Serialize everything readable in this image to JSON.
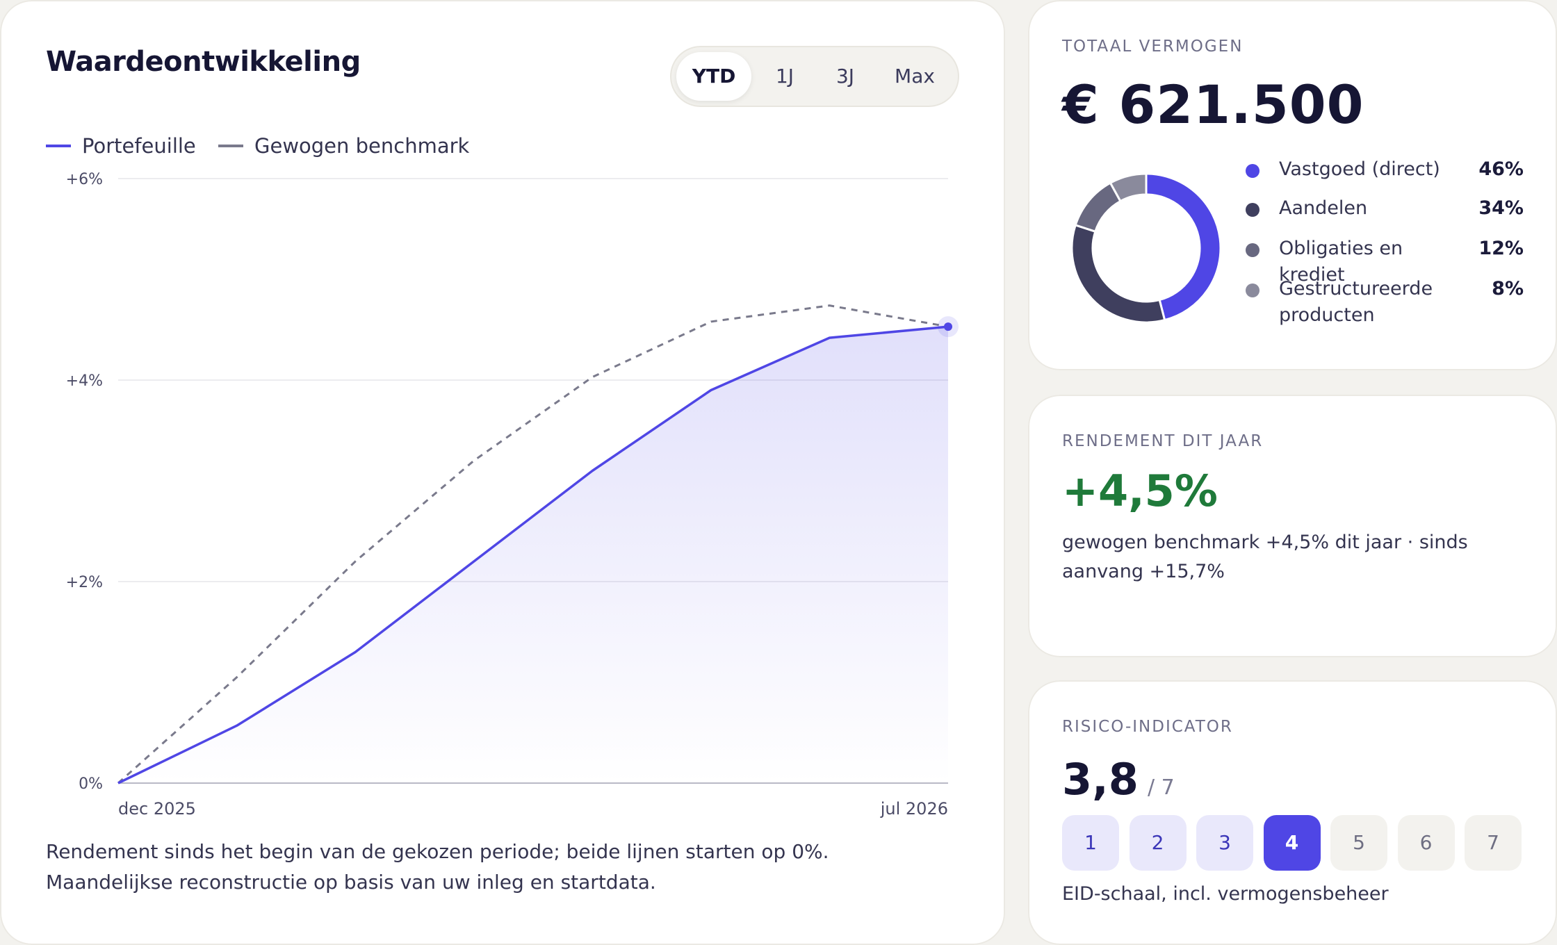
{
  "chart_card": {
    "title": "Waardeontwikkeling",
    "period_tabs": [
      {
        "label": "YTD",
        "active": true
      },
      {
        "label": "1J",
        "active": false
      },
      {
        "label": "3J",
        "active": false
      },
      {
        "label": "Max",
        "active": false
      }
    ],
    "legend": [
      {
        "label": "Portefeuille",
        "color": "#4f46e5",
        "style": "solid"
      },
      {
        "label": "Gewogen benchmark",
        "color": "#7a7a8c",
        "style": "dashed"
      }
    ],
    "footnote": "Rendement sinds het begin van de gekozen periode; beide lijnen starten op 0%. Maandelijkse reconstructie op basis van uw inleg en startdata."
  },
  "chart_data": {
    "type": "area",
    "y_ticks": [
      "0%",
      "+2%",
      "+4%",
      "+6%"
    ],
    "x_ticks": [
      "dec 2025",
      "jul 2026"
    ],
    "ylim": [
      0,
      6
    ],
    "grid": true,
    "series": [
      {
        "name": "Portefeuille",
        "color": "#4f46e5",
        "values": [
          0,
          0.57,
          1.3,
          2.2,
          3.1,
          3.9,
          4.42,
          4.53
        ]
      },
      {
        "name": "Gewogen benchmark",
        "color": "#7a7a8c",
        "values": [
          0,
          1.05,
          2.2,
          3.2,
          4.03,
          4.58,
          4.74,
          4.53
        ]
      }
    ]
  },
  "total": {
    "label": "TOTAAL VERMOGEN",
    "value": "€ 621.500",
    "allocation": [
      {
        "label": "Vastgoed (direct)",
        "pct": "46%",
        "value": 46,
        "color": "#4f46e5"
      },
      {
        "label": "Aandelen",
        "pct": "34%",
        "value": 34,
        "color": "#3f3f5e"
      },
      {
        "label": "Obligaties en krediet",
        "pct": "12%",
        "value": 12,
        "color": "#686880"
      },
      {
        "label": "Gestructureerde producten",
        "pct": "8%",
        "value": 8,
        "color": "#8a8a9c"
      }
    ]
  },
  "return": {
    "label": "RENDEMENT DIT JAAR",
    "value": "+4,5%",
    "value_color": "#1f7a3a",
    "subtitle": "gewogen benchmark +4,5% dit jaar · sinds aanvang +15,7%"
  },
  "risk": {
    "label": "RISICO-INDICATOR",
    "value": "3,8",
    "scale": "/ 7",
    "levels": [
      "1",
      "2",
      "3",
      "4",
      "5",
      "6",
      "7"
    ],
    "current_level": 4,
    "caption": "EID-schaal, incl. vermogensbeheer"
  }
}
